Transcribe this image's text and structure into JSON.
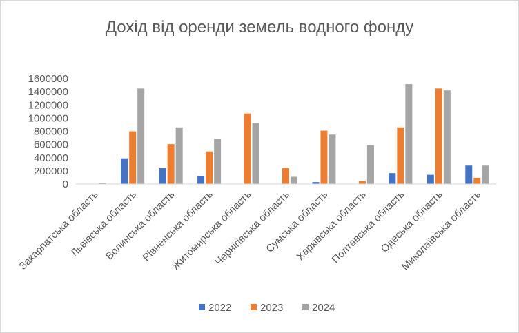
{
  "chart_data": {
    "type": "bar",
    "title": "Дохід від оренди земель водного фонду",
    "xlabel": "",
    "ylabel": "",
    "categories": [
      "Закарпатська область",
      "Львівська область",
      "Волинська область",
      "Рівненська область",
      "Житомирська область",
      "Чернігівська область",
      "Сумська область",
      "Харківська область",
      "Полтавська область",
      "Одеська область",
      "Миколаївська область"
    ],
    "series": [
      {
        "name": "2022",
        "color": "#4472c4",
        "values": [
          0,
          390000,
          240000,
          120000,
          0,
          0,
          30000,
          0,
          165000,
          140000,
          280000
        ]
      },
      {
        "name": "2023",
        "color": "#ed7d31",
        "values": [
          0,
          800000,
          605000,
          495000,
          1070000,
          245000,
          810000,
          45000,
          860000,
          1450000,
          95000
        ]
      },
      {
        "name": "2024",
        "color": "#a5a5a5",
        "values": [
          15000,
          1450000,
          860000,
          685000,
          925000,
          110000,
          750000,
          590000,
          1515000,
          1420000,
          280000
        ]
      }
    ],
    "ylim": [
      0,
      1600000
    ],
    "yticks": [
      "0",
      "200000",
      "400000",
      "600000",
      "800000",
      "1000000",
      "1200000",
      "1400000",
      "1600000"
    ],
    "grid": false,
    "legend": "bottom"
  }
}
